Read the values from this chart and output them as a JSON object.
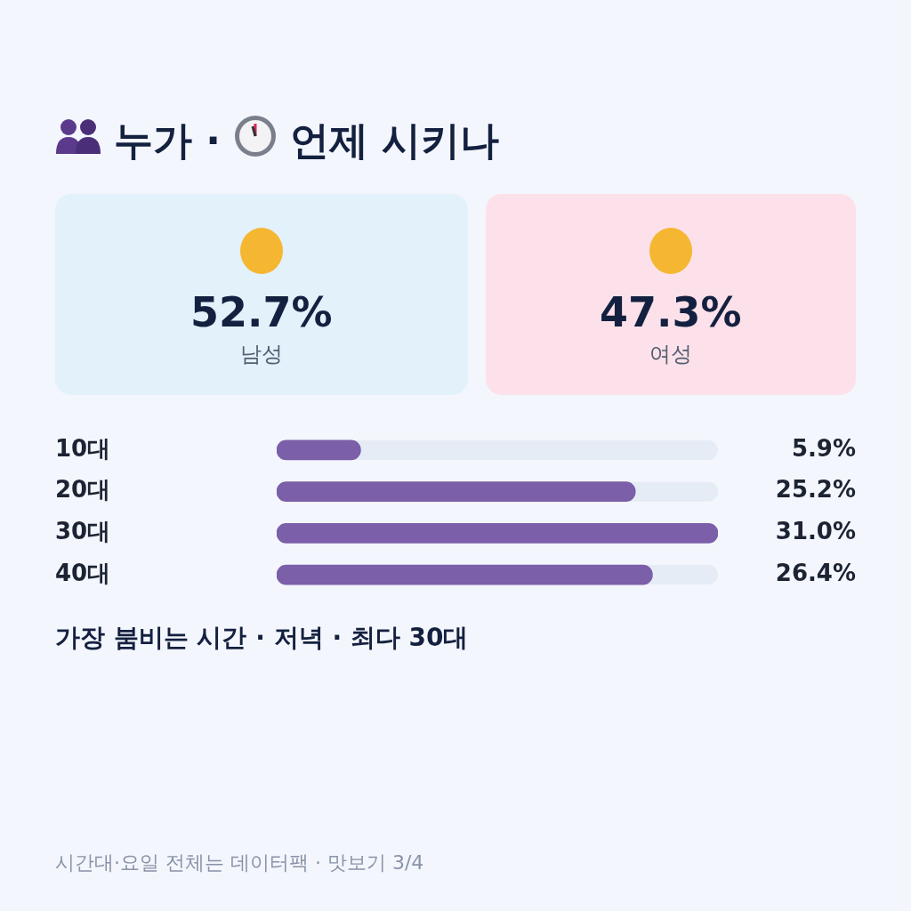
{
  "chart_data": [
    {
      "type": "other",
      "title": "누가 · 언제 시키나",
      "categories": [
        "남성",
        "여성"
      ],
      "values": [
        52.7,
        47.3
      ],
      "value_labels": [
        "52.7%",
        "47.3%"
      ],
      "colors": [
        "#e3f1fb",
        "#fde1ea"
      ]
    },
    {
      "type": "bar",
      "orientation": "horizontal",
      "categories": [
        "10대",
        "20대",
        "30대",
        "40대"
      ],
      "values": [
        5.9,
        25.2,
        31.0,
        26.4
      ],
      "color": "#7b5fa8",
      "value_labels": [
        "5.9%",
        "25.2%",
        "31.0%",
        "26.4%"
      ],
      "annotations": [
        "가장 붐비는 시간 · 저녁 · 최다 30대",
        "시간대·요일 전체는 데이터팩 · 맛보기 3/4"
      ]
    }
  ]
}
